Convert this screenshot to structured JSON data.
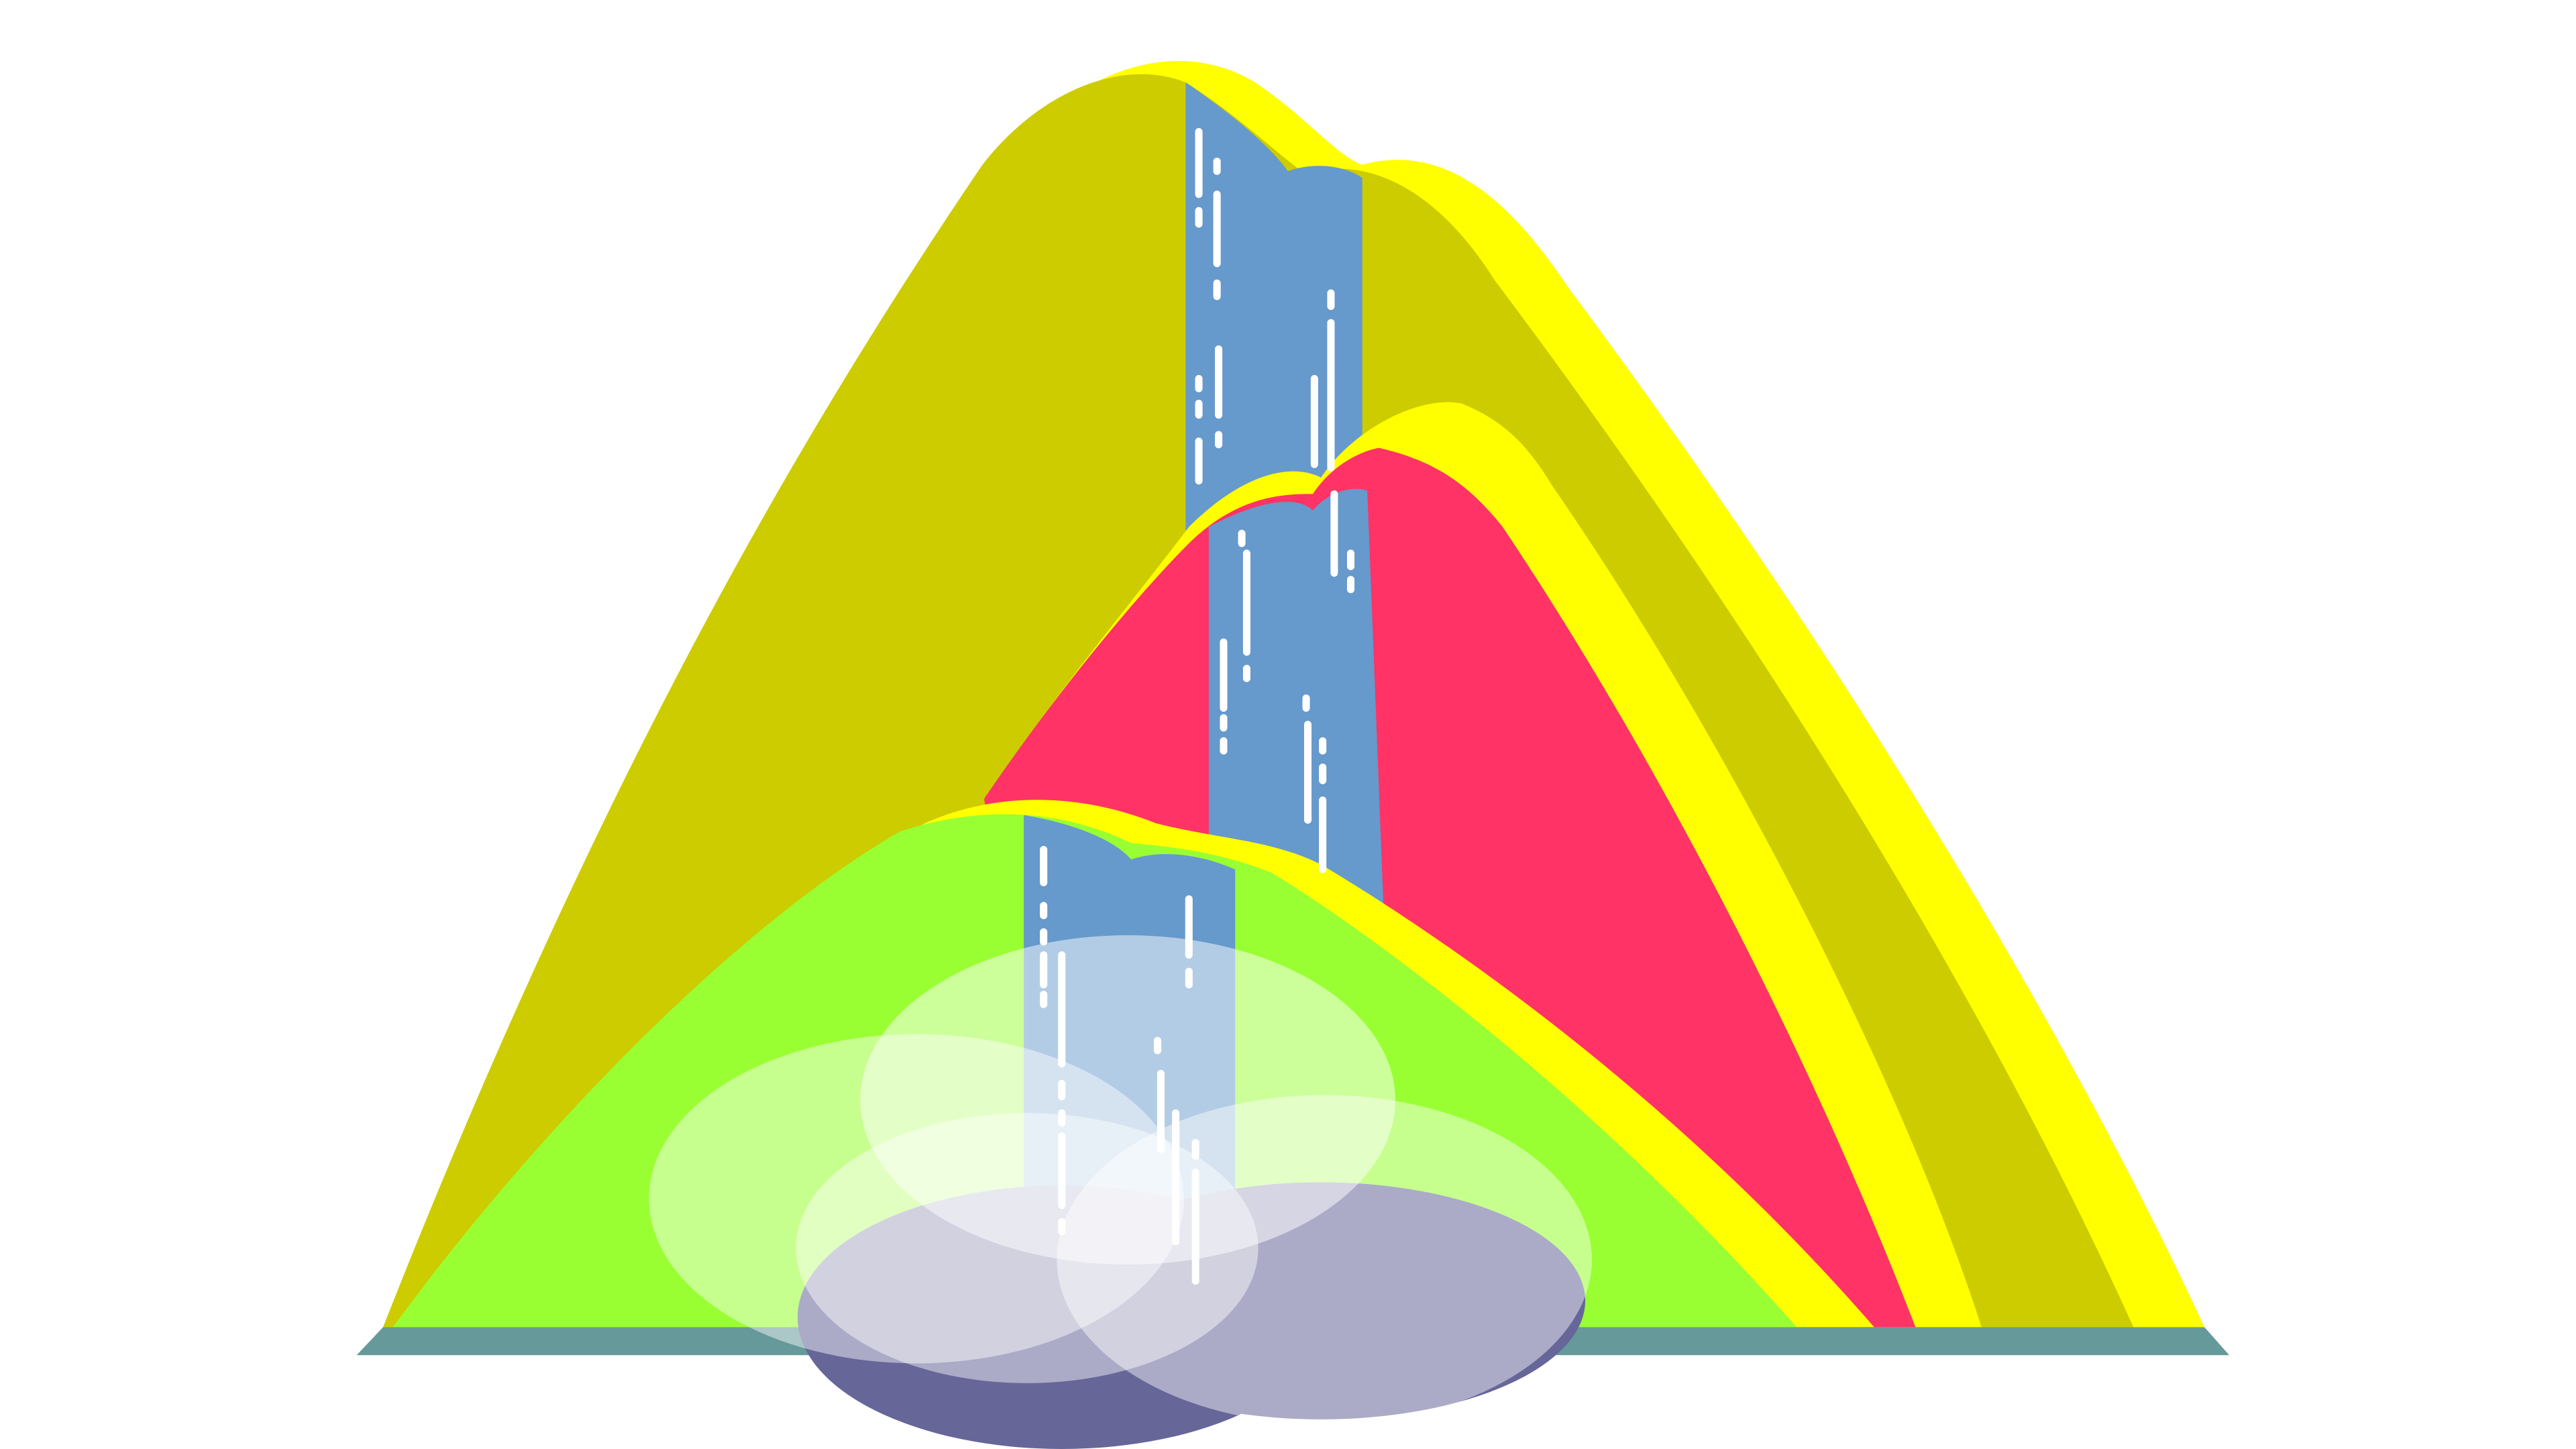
{
  "scene": {
    "subject": "waterfall-illustration",
    "colors": {
      "background": "#FFFFFF",
      "mountain_back": "#CCCC00",
      "mountain_middle": "#FF3366",
      "mountain_front": "#99FF33",
      "ridge_highlight": "#FFFF00",
      "waterfall": "#6699CC",
      "water_streaks": "#FFFFFF",
      "ground_strip": "#669999",
      "pool": "#666699",
      "mist": "#FFFFFF"
    }
  }
}
